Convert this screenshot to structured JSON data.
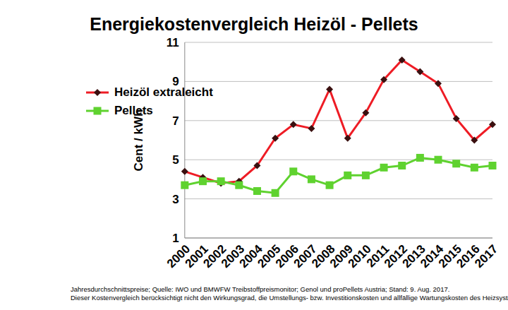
{
  "chart_data": {
    "type": "line",
    "title": "Energiekostenvergleich Heizöl - Pellets",
    "y_label": "Cent / kWh",
    "categories": [
      "2000",
      "2001",
      "2002",
      "2003",
      "2004",
      "2005",
      "2006",
      "2007",
      "2008",
      "2009",
      "2010",
      "2011",
      "2012",
      "2013",
      "2014",
      "2015",
      "2016",
      "2017"
    ],
    "series": [
      {
        "name": "Heizöl extraleicht",
        "color": "#ee1c25",
        "marker": "diamond",
        "values": [
          4.4,
          4.1,
          3.8,
          3.9,
          4.7,
          6.1,
          6.8,
          6.6,
          8.6,
          6.1,
          7.4,
          9.1,
          10.1,
          9.5,
          8.9,
          7.1,
          6.0,
          6.8
        ]
      },
      {
        "name": "Pellets",
        "color": "#5fd22f",
        "marker": "square",
        "values": [
          3.7,
          3.9,
          3.9,
          3.7,
          3.4,
          3.3,
          4.4,
          4.0,
          3.7,
          4.2,
          4.2,
          4.6,
          4.7,
          5.1,
          5.0,
          4.8,
          4.6,
          4.7
        ]
      }
    ],
    "ylim": [
      1,
      11
    ],
    "yticks": [
      1,
      3,
      5,
      7,
      9,
      11
    ],
    "grid": true,
    "legend": "upper left",
    "annotations": [
      "Jahresdurchschnittspreise; Quelle: IWO und BMWFW Treibstoffpreismonitor; Genol und proPellets Austria; Stand:  9.  Aug. 2017.",
      "Dieser Kostenvergleich berücksichtigt nicht den Wirkungsgrad, die Umstellungs- bzw. Investitionskosten und allfällige Wartungskosten des Heizsystems."
    ]
  }
}
